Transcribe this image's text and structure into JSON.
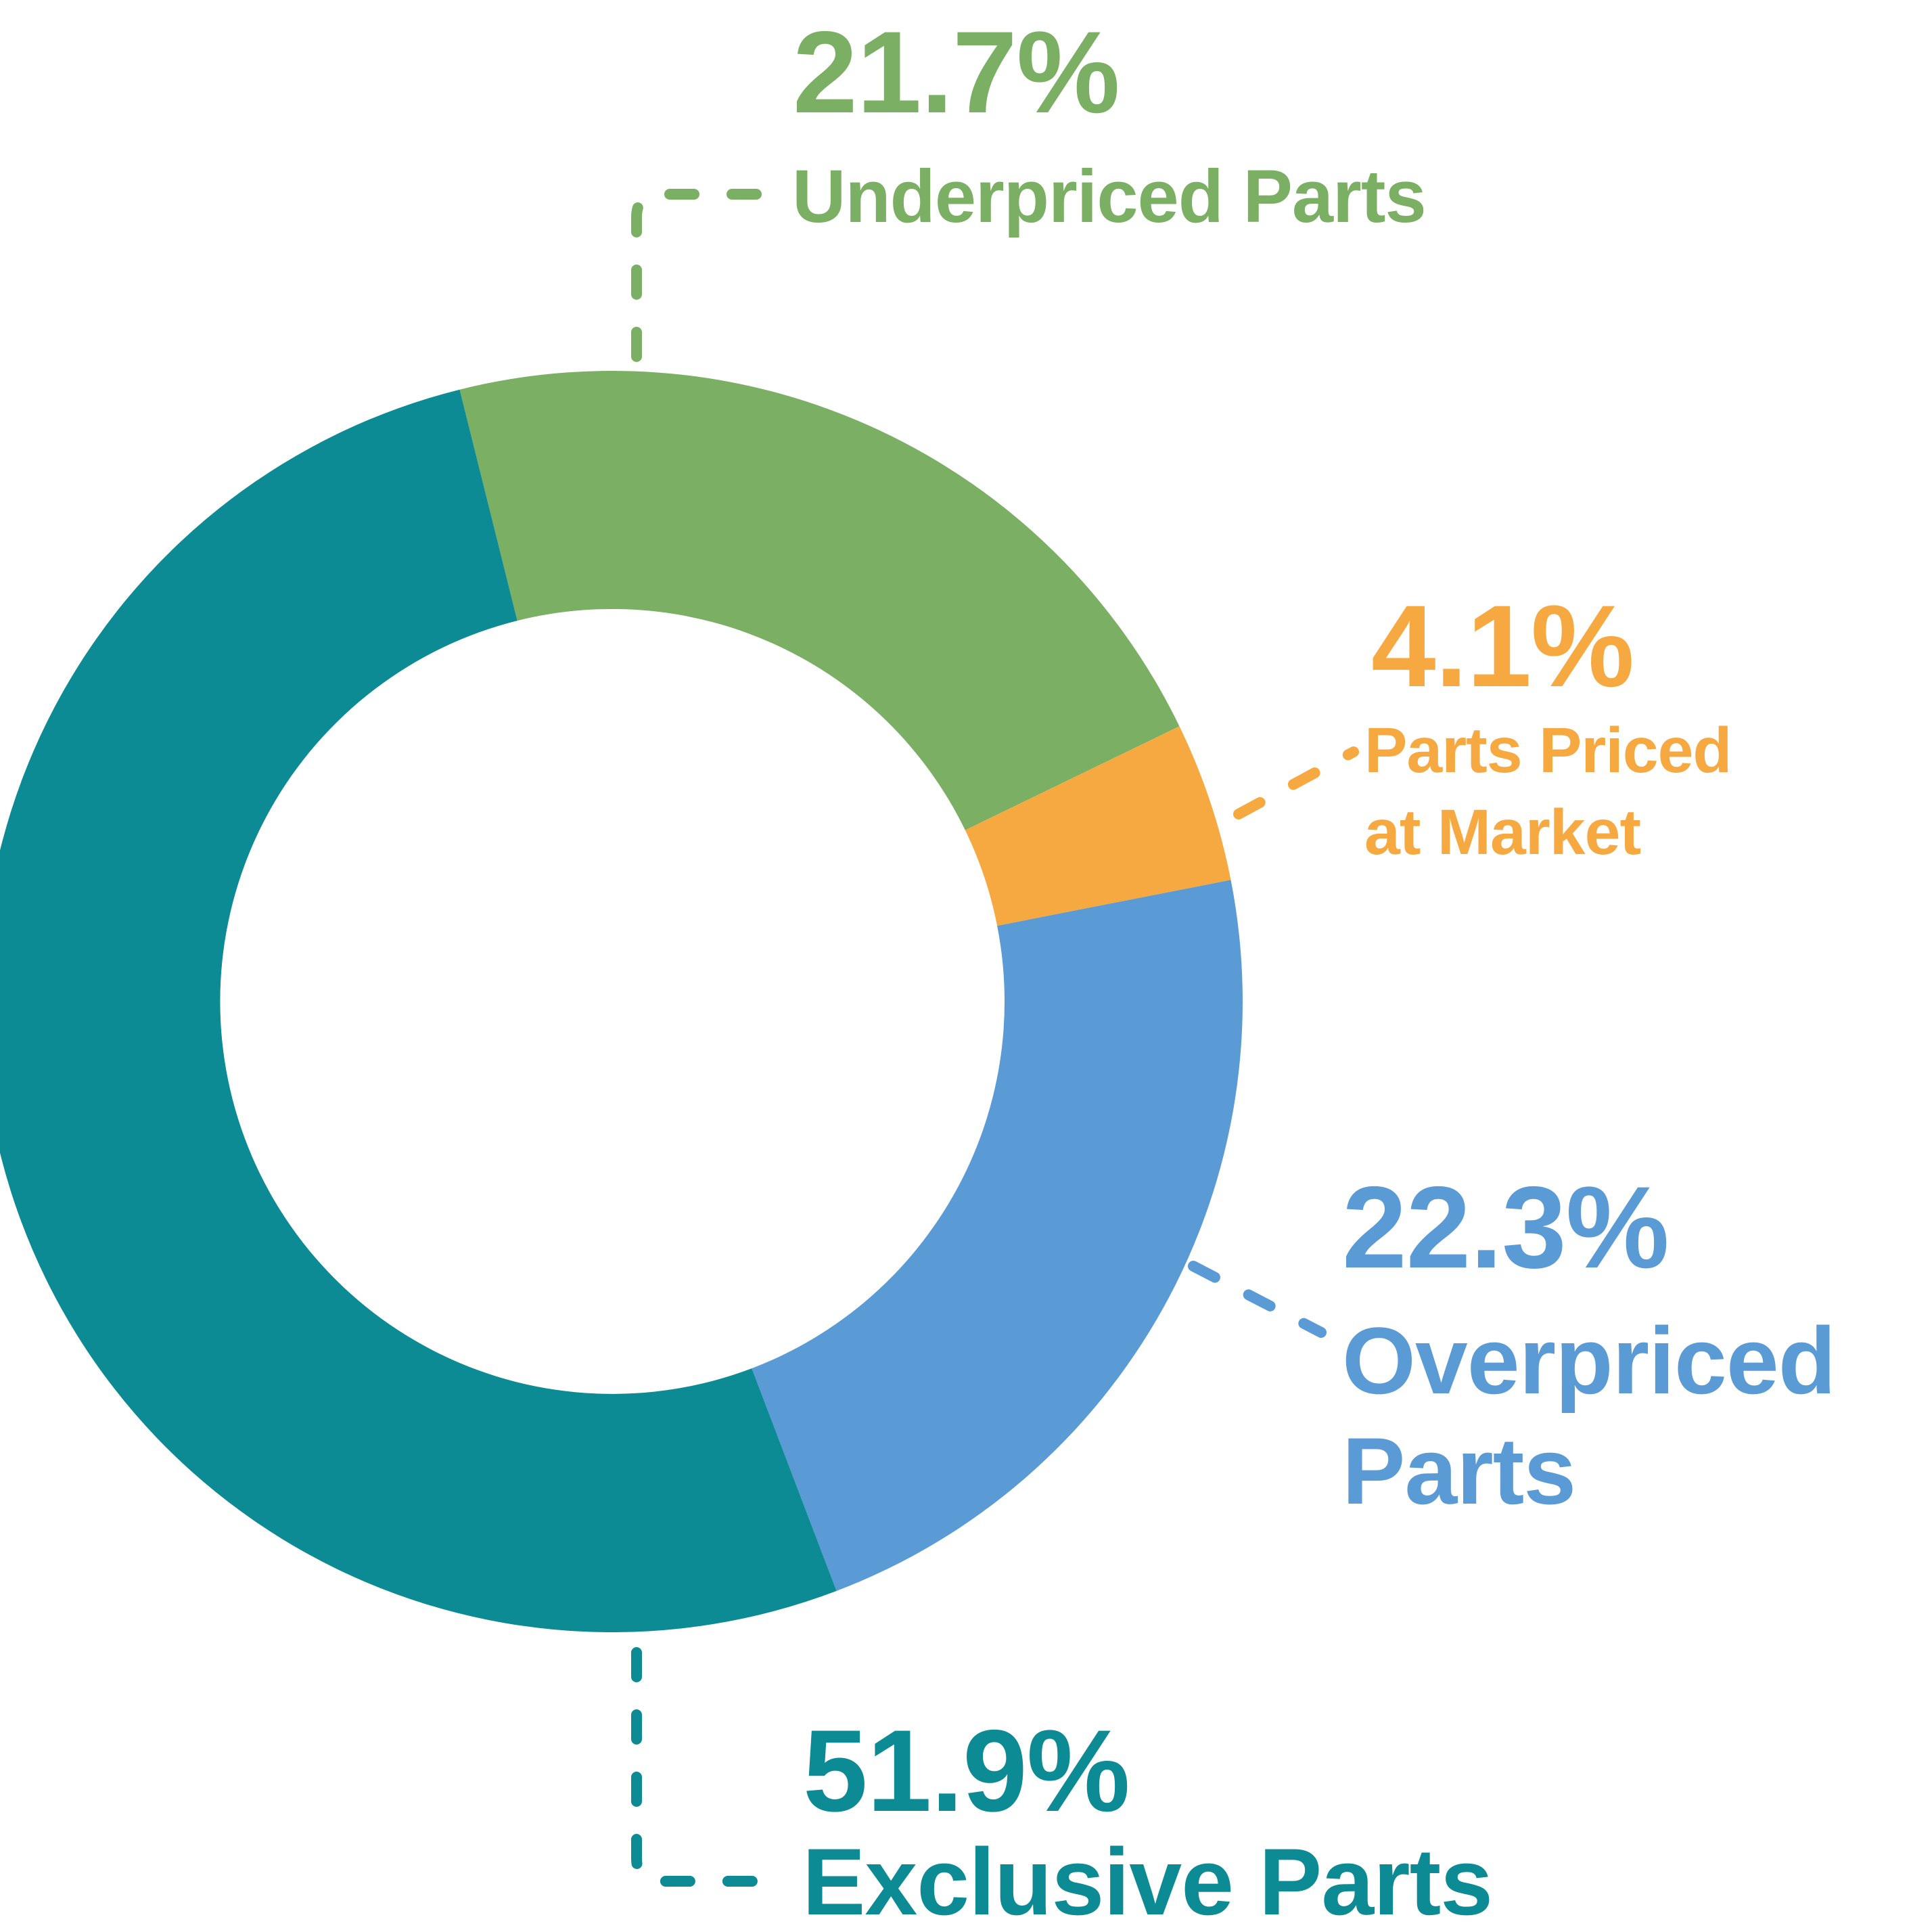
{
  "chart_data": {
    "type": "pie",
    "variant": "donut",
    "title": "",
    "direction": "clockwise",
    "start_angle_from_12_deg": -14,
    "inner_radius_ratio": 0.62,
    "legend_position": "callouts",
    "segments": [
      {
        "id": "underpriced",
        "label": "Underpriced Parts",
        "lines": [
          "Underpriced Parts"
        ],
        "value": 21.7,
        "display": "21.7%",
        "color": "#7BAF63"
      },
      {
        "id": "market",
        "label": "Parts Priced at Market",
        "lines": [
          "Parts Priced",
          "at Market"
        ],
        "value": 4.1,
        "display": "4.1%",
        "color": "#F7A941"
      },
      {
        "id": "overpriced",
        "label": "Overpriced Parts",
        "lines": [
          "Overpriced",
          "Parts"
        ],
        "value": 22.3,
        "display": "22.3%",
        "color": "#5B9BD5"
      },
      {
        "id": "exclusive",
        "label": "Exclusive Parts",
        "lines": [
          "Exclusive Parts"
        ],
        "value": 51.9,
        "display": "51.9%",
        "color": "#0C8B94"
      }
    ]
  }
}
